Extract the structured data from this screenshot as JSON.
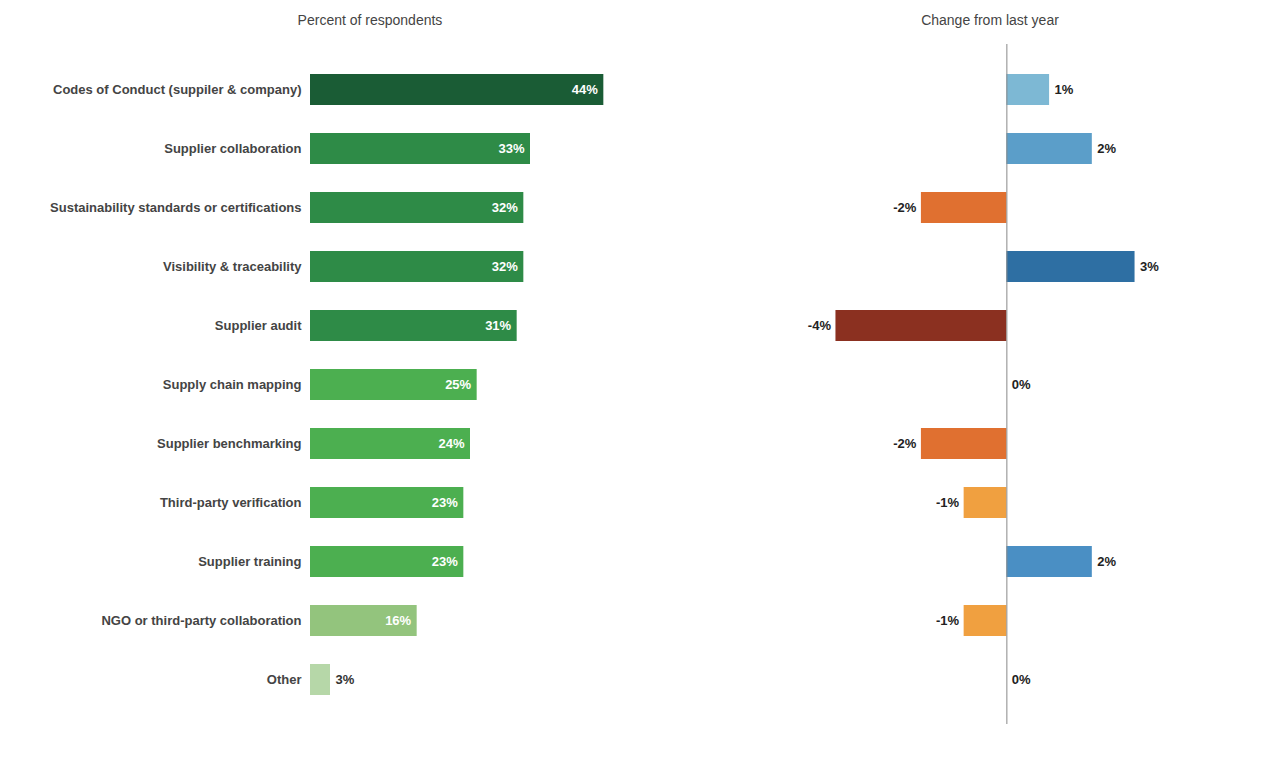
{
  "chart_data": [
    {
      "type": "bar",
      "orientation": "horizontal",
      "title": "Percent of respondents",
      "categories": [
        "Codes of Conduct (suppiler & company)",
        "Supplier collaboration",
        "Sustainability standards or certifications",
        "Visibility & traceability",
        "Supplier audit",
        "Supply chain mapping",
        "Supplier benchmarking",
        "Third-party verification",
        "Supplier training",
        "NGO or third-party collaboration",
        "Other"
      ],
      "values": [
        44,
        33,
        32,
        32,
        31,
        25,
        24,
        23,
        23,
        16,
        3
      ],
      "value_labels": [
        "44%",
        "33%",
        "32%",
        "32%",
        "31%",
        "25%",
        "24%",
        "23%",
        "23%",
        "16%",
        "3%"
      ],
      "colors": [
        "#1a5c35",
        "#2e8b47",
        "#2e8b47",
        "#2e8b47",
        "#2e8b47",
        "#4caf50",
        "#4caf50",
        "#4caf50",
        "#4caf50",
        "#93c47d",
        "#b6d7a8"
      ],
      "xlim": [
        0,
        60
      ],
      "data_labels": true,
      "tick_labels": "y",
      "grid": false
    },
    {
      "type": "bar",
      "orientation": "horizontal",
      "title": "Change from last year",
      "categories": [
        "Codes of Conduct (suppiler & company)",
        "Supplier collaboration",
        "Sustainability standards or certifications",
        "Visibility & traceability",
        "Supplier audit",
        "Supply chain mapping",
        "Supplier benchmarking",
        "Third-party verification",
        "Supplier training",
        "NGO or third-party collaboration",
        "Other"
      ],
      "values": [
        1,
        2,
        -2,
        3,
        -4,
        0,
        -2,
        -1,
        2,
        -1,
        0
      ],
      "value_labels": [
        "1%",
        "2%",
        "-2%",
        "3%",
        "-4%",
        "0%",
        "-2%",
        "-1%",
        "2%",
        "-1%",
        "0%"
      ],
      "colors": [
        "#7db8d4",
        "#5b9ec9",
        "#e07030",
        "#2e6fa3",
        "#8b3020",
        "#95cde0",
        "#e07030",
        "#f0a040",
        "#4a8fc4",
        "#f0a040",
        "#d4b89a"
      ],
      "xlim": [
        -6,
        5
      ],
      "data_labels": true,
      "tick_labels": false,
      "grid": false
    }
  ]
}
